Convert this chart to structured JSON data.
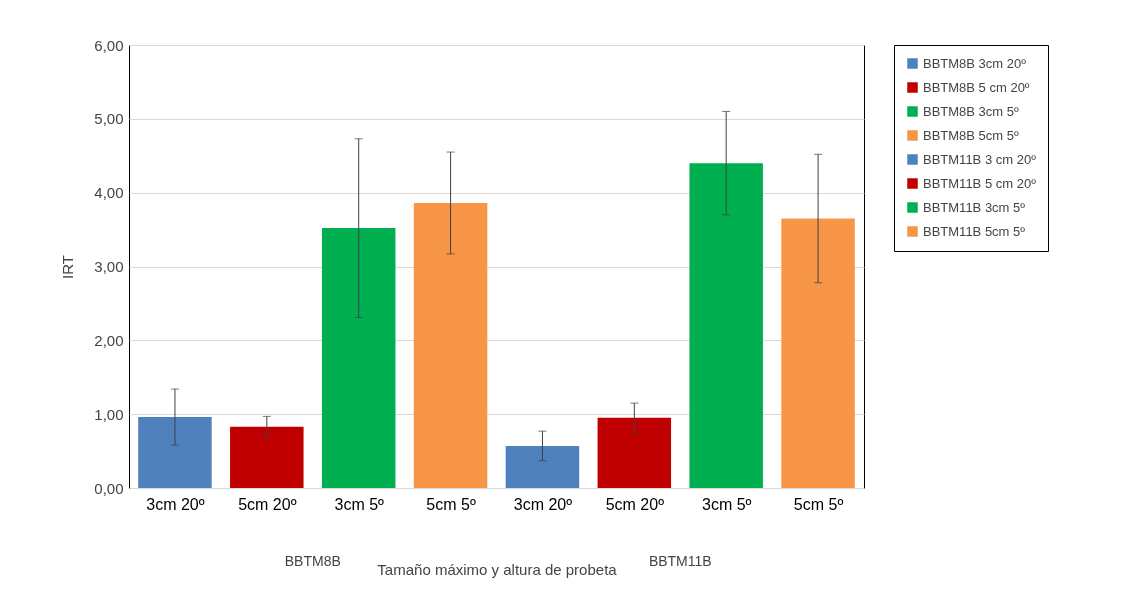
{
  "chart_data": {
    "type": "bar",
    "xlabel": "Tamaño máximo y altura de probeta",
    "ylabel": "IRT",
    "categories": [
      "3cm 20º",
      "5cm 20º",
      "3cm 5º",
      "5cm 5º",
      "3cm 20º",
      "5cm 20º",
      "3cm 5º",
      "5cm 5º"
    ],
    "series": [
      {
        "name": "BBTM8B 3cm 20º",
        "color": "#4f81bd",
        "values": [
          0.96,
          null,
          null,
          null,
          null,
          null,
          null,
          null
        ],
        "errors": [
          0.38,
          null,
          null,
          null,
          null,
          null,
          null,
          null
        ]
      },
      {
        "name": "BBTM8B 5 cm 20º",
        "color": "#c00000",
        "values": [
          null,
          0.83,
          null,
          null,
          null,
          null,
          null,
          null
        ],
        "errors": [
          null,
          0.14,
          null,
          null,
          null,
          null,
          null,
          null
        ]
      },
      {
        "name": "BBTM8B 3cm 5º",
        "color": "#00b050",
        "values": [
          null,
          null,
          3.52,
          null,
          null,
          null,
          null,
          null
        ],
        "errors": [
          null,
          null,
          1.21,
          null,
          null,
          null,
          null,
          null
        ]
      },
      {
        "name": "BBTM8B 5cm 5º",
        "color": "#f79646",
        "values": [
          null,
          null,
          null,
          3.86,
          null,
          null,
          null,
          null
        ],
        "errors": [
          null,
          null,
          null,
          0.69,
          null,
          null,
          null,
          null
        ]
      },
      {
        "name": "BBTM11B 3 cm 20º",
        "color": "#4f81bd",
        "values": [
          null,
          null,
          null,
          null,
          0.57,
          null,
          null,
          null
        ],
        "errors": [
          null,
          null,
          null,
          null,
          0.2,
          null,
          null,
          null
        ]
      },
      {
        "name": "BBTM11B 5 cm 20º",
        "color": "#c00000",
        "values": [
          null,
          null,
          null,
          null,
          null,
          0.95,
          null,
          null
        ],
        "errors": [
          null,
          null,
          null,
          null,
          null,
          0.2,
          null,
          null
        ]
      },
      {
        "name": "BBTM11B 3cm 5º",
        "color": "#00b050",
        "values": [
          null,
          null,
          null,
          null,
          null,
          null,
          4.4,
          null
        ],
        "errors": [
          null,
          null,
          null,
          null,
          null,
          null,
          0.7,
          null
        ]
      },
      {
        "name": "BBTM11B 5cm 5º",
        "color": "#f79646",
        "values": [
          null,
          null,
          null,
          null,
          null,
          null,
          null,
          3.65
        ],
        "errors": [
          null,
          null,
          null,
          null,
          null,
          null,
          null,
          0.87
        ]
      }
    ],
    "ylim": [
      0,
      6
    ],
    "yticks": [
      {
        "value": 0,
        "label": "0,00"
      },
      {
        "value": 1,
        "label": "1,00"
      },
      {
        "value": 2,
        "label": "2,00"
      },
      {
        "value": 3,
        "label": "3,00"
      },
      {
        "value": 4,
        "label": "4,00"
      },
      {
        "value": 5,
        "label": "5,00"
      },
      {
        "value": 6,
        "label": "6,00"
      }
    ],
    "annotations": [
      "BBTM8B",
      "BBTM11B"
    ],
    "grid": "y",
    "legend": "right"
  }
}
